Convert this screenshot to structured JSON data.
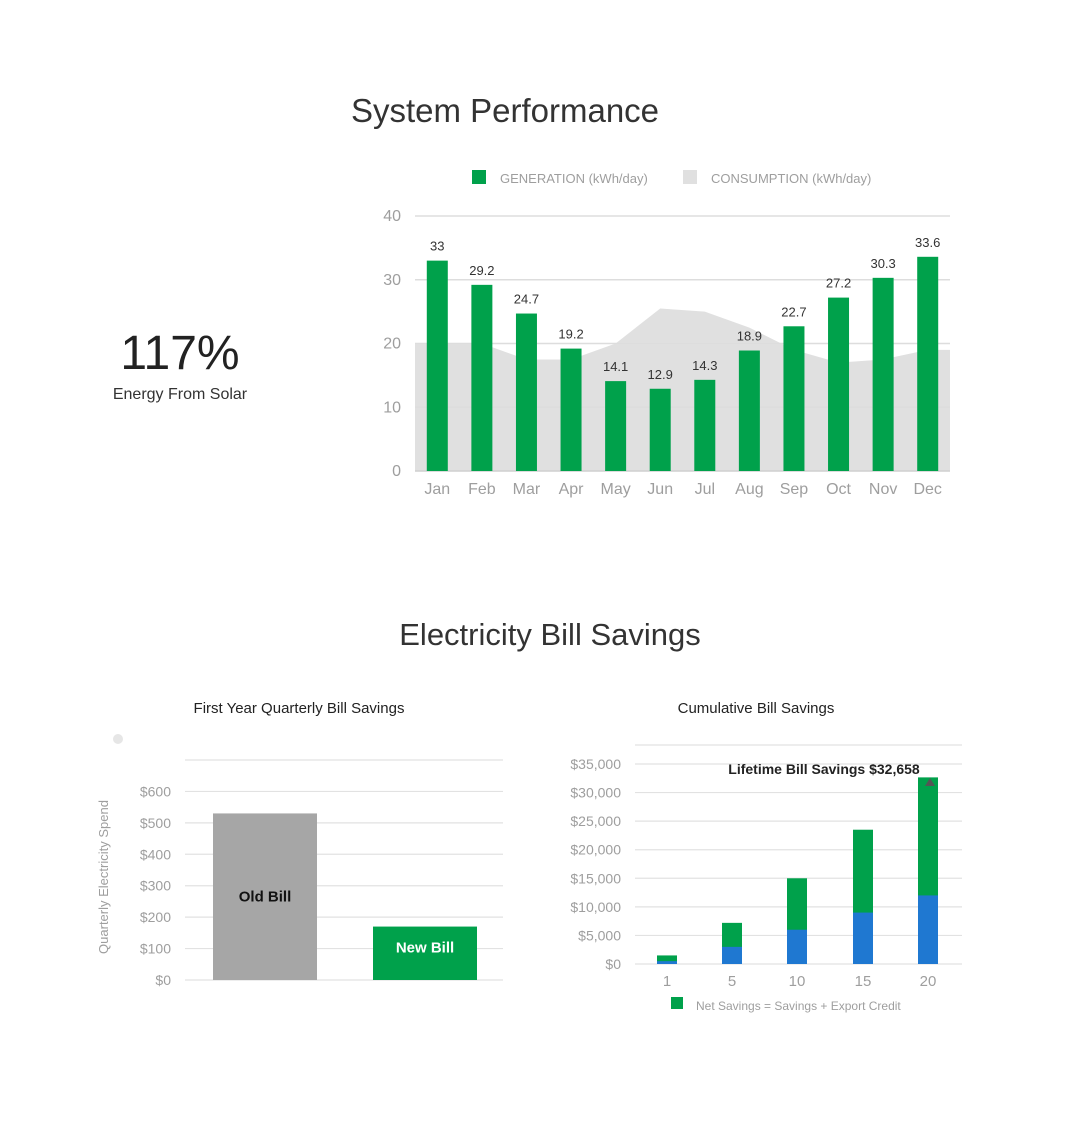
{
  "performance": {
    "title": "System Performance",
    "kpi_value": "117%",
    "kpi_label": "Energy From Solar"
  },
  "savings": {
    "title": "Electricity Bill Savings"
  },
  "colors": {
    "generation": "#00a14b",
    "consumption": "#e0e0e0",
    "old_bill": "#a6a6a6",
    "export_credit": "#1f78d1",
    "text_muted": "#9e9e9e"
  },
  "chart_data": [
    {
      "type": "bar",
      "categories": [
        "Jan",
        "Feb",
        "Mar",
        "Apr",
        "May",
        "Jun",
        "Jul",
        "Aug",
        "Sep",
        "Oct",
        "Nov",
        "Dec"
      ],
      "series": [
        {
          "name": "GENERATION (kWh/day)",
          "type": "bar",
          "values": [
            33,
            29.2,
            24.7,
            19.2,
            14.1,
            12.9,
            14.3,
            18.9,
            22.7,
            27.2,
            30.3,
            33.6
          ],
          "data_labels": [
            "33",
            "29.2",
            "24.7",
            "19.2",
            "14.1",
            "12.9",
            "14.3",
            "18.9",
            "22.7",
            "27.2",
            "30.3",
            "33.6"
          ]
        },
        {
          "name": "CONSUMPTION (kWh/day)",
          "type": "area",
          "values": [
            20,
            20,
            17.5,
            17.5,
            20,
            25.5,
            25,
            22.5,
            19,
            17,
            17.5,
            19
          ]
        }
      ],
      "ylim": [
        0,
        40
      ],
      "yticks": [
        "0",
        "10",
        "20",
        "30",
        "40"
      ],
      "legend": "top",
      "grid": true
    },
    {
      "type": "bar",
      "title": "First Year Quarterly Bill Savings",
      "ylabel": "Quarterly Electricity Spend",
      "categories": [
        "Old Bill",
        "New Bill"
      ],
      "values": [
        530,
        170
      ],
      "bar_labels": [
        "Old Bill",
        "New Bill"
      ],
      "ylim": [
        0,
        700
      ],
      "yticks": [
        "$0",
        "$100",
        "$200",
        "$300",
        "$400",
        "$500",
        "$600"
      ],
      "grid": true
    },
    {
      "type": "bar",
      "title": "Cumulative Bill Savings",
      "annotation": "Lifetime Bill Savings $32,658",
      "categories": [
        "1",
        "5",
        "10",
        "15",
        "20"
      ],
      "series": [
        {
          "name": "Export Credit",
          "values": [
            500,
            3000,
            6000,
            9000,
            12000
          ]
        },
        {
          "name": "Net Savings = Savings + Export Credit",
          "values": [
            1500,
            7200,
            15000,
            23500,
            32658
          ]
        }
      ],
      "ylim": [
        0,
        36000
      ],
      "yticks": [
        "$0",
        "$5,000",
        "$10,000",
        "$15,000",
        "$20,000",
        "$25,000",
        "$30,000",
        "$35,000"
      ],
      "legend": "bottom",
      "grid": true
    }
  ]
}
